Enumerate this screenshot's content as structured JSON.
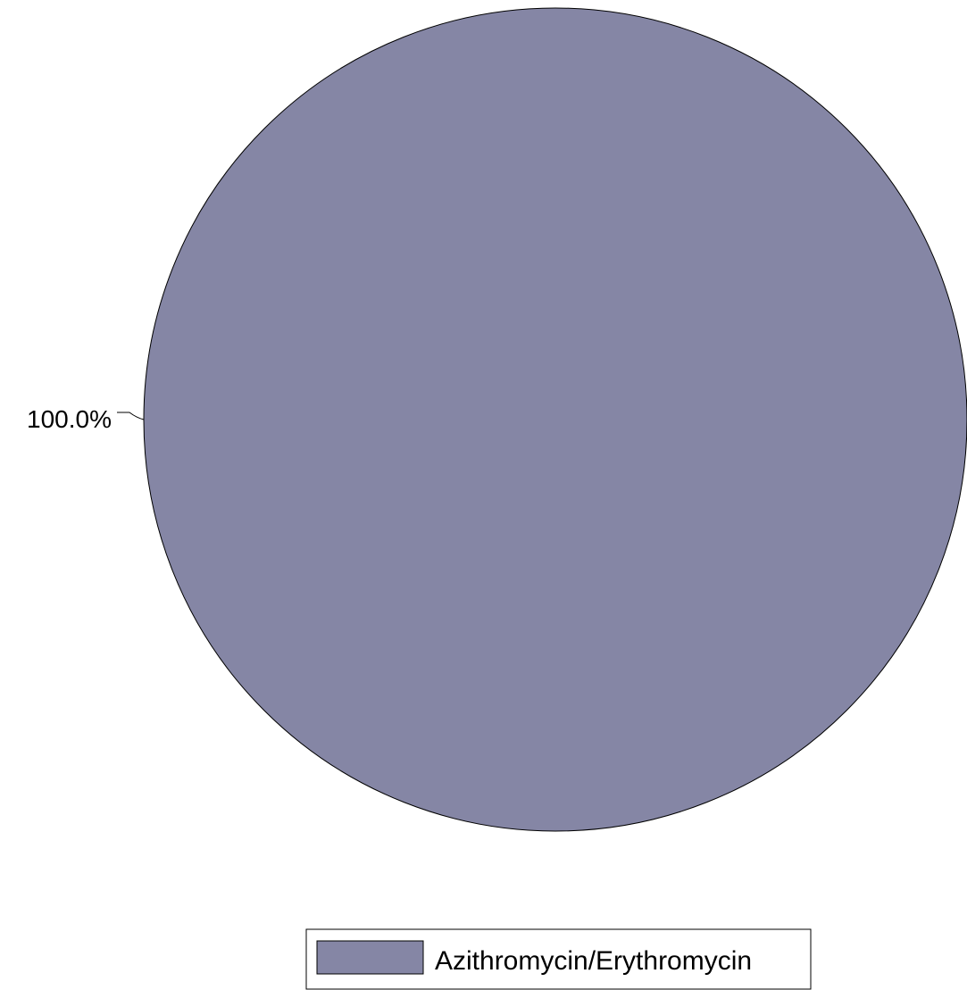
{
  "chart_data": {
    "type": "pie",
    "slices": [
      {
        "name": "Azithromycin/Erythromycin",
        "value": 100.0,
        "label": "100.0%",
        "color": "#8586a5"
      }
    ],
    "legend": {
      "position": "bottom-center",
      "entries": [
        "Azithromycin/Erythromycin"
      ]
    },
    "stroke_color": "#000000",
    "background": "#ffffff"
  }
}
